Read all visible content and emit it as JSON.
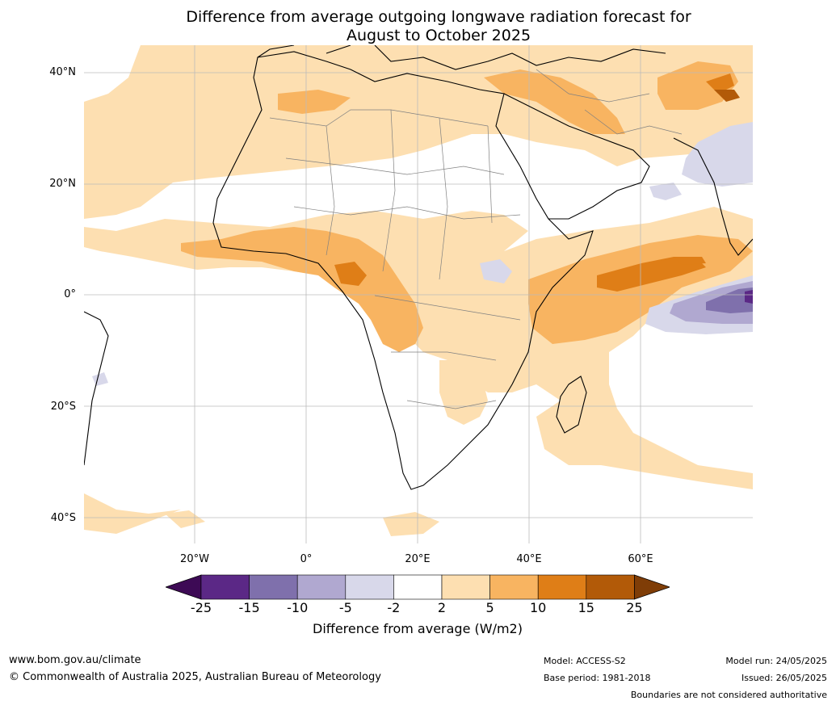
{
  "title": {
    "line1": "Difference from average outgoing longwave radiation forecast for",
    "line2": "August to October 2025"
  },
  "map": {
    "lat_labels": [
      "40°N",
      "20°N",
      "0°",
      "20°S",
      "40°S"
    ],
    "lon_labels": [
      "20°W",
      "0°",
      "20°E",
      "40°E",
      "60°E"
    ]
  },
  "colorbar": {
    "ticks": [
      "-25",
      "-15",
      "-10",
      "-5",
      "-2",
      "2",
      "5",
      "10",
      "15",
      "25"
    ],
    "colors": [
      "#5b2886",
      "#7f70ac",
      "#b0a8d0",
      "#d8d8ea",
      "#ffffff",
      "#fddfb1",
      "#f8b461",
      "#df7e17",
      "#b25a08"
    ],
    "extend_low_color": "#3d0a55",
    "extend_high_color": "#7f3d07",
    "label": "Difference from average (W/m2)"
  },
  "footer": {
    "website": "www.bom.gov.au/climate",
    "copyright": "© Commonwealth of Australia 2025, Australian Bureau of Meteorology",
    "model": "Model: ACCESS-S2",
    "base_period": "Base period: 1981-2018",
    "model_run": "Model run: 24/05/2025",
    "issued": "Issued: 26/05/2025",
    "disclaimer": "Boundaries are not considered authoritative"
  }
}
